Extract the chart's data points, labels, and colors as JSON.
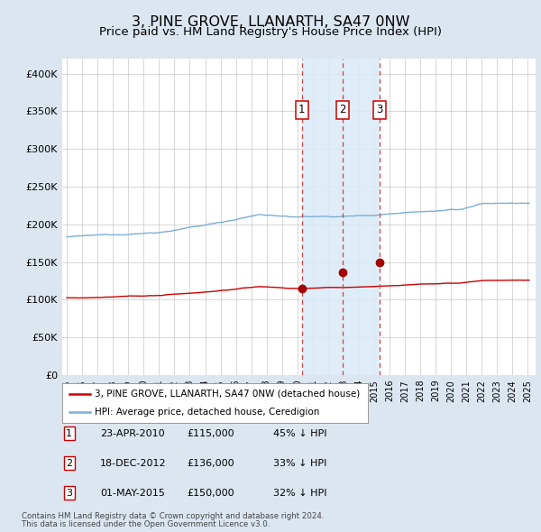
{
  "title": "3, PINE GROVE, LLANARTH, SA47 0NW",
  "subtitle": "Price paid vs. HM Land Registry's House Price Index (HPI)",
  "title_fontsize": 11.5,
  "subtitle_fontsize": 9.5,
  "ylabel_ticks": [
    "£0",
    "£50K",
    "£100K",
    "£150K",
    "£200K",
    "£250K",
    "£300K",
    "£350K",
    "£400K"
  ],
  "ytick_values": [
    0,
    50000,
    100000,
    150000,
    200000,
    250000,
    300000,
    350000,
    400000
  ],
  "ylim": [
    0,
    420000
  ],
  "xlim_start": 1994.7,
  "xlim_end": 2025.5,
  "hpi_color": "#7bafd4",
  "price_color": "#cc0000",
  "shade_color": "#daeaf7",
  "background_color": "#dce6f1",
  "plot_bg_color": "#ffffff",
  "grid_color": "#c8c8c8",
  "transactions": [
    {
      "num": 1,
      "date": "23-APR-2010",
      "price": 115000,
      "year": 2010.29,
      "pct": "45%",
      "dir": "↓"
    },
    {
      "num": 2,
      "date": "18-DEC-2012",
      "price": 136000,
      "year": 2012.96,
      "pct": "33%",
      "dir": "↓"
    },
    {
      "num": 3,
      "date": "01-MAY-2015",
      "price": 150000,
      "year": 2015.33,
      "pct": "32%",
      "dir": "↓"
    }
  ],
  "legend_label_price": "3, PINE GROVE, LLANARTH, SA47 0NW (detached house)",
  "legend_label_hpi": "HPI: Average price, detached house, Ceredigion",
  "footer1": "Contains HM Land Registry data © Crown copyright and database right 2024.",
  "footer2": "This data is licensed under the Open Government Licence v3.0.",
  "xtick_years": [
    1995,
    1996,
    1997,
    1998,
    1999,
    2000,
    2001,
    2002,
    2003,
    2004,
    2005,
    2006,
    2007,
    2008,
    2009,
    2010,
    2011,
    2012,
    2013,
    2014,
    2015,
    2016,
    2017,
    2018,
    2019,
    2020,
    2021,
    2022,
    2023,
    2024,
    2025
  ]
}
